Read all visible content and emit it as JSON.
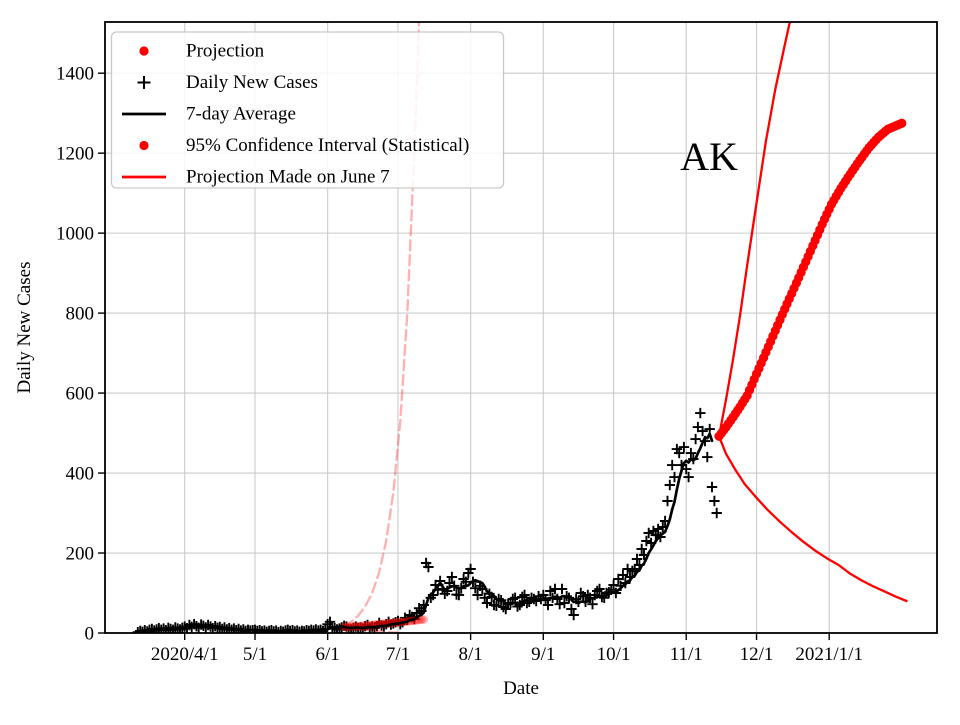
{
  "chart_data": {
    "type": "line+scatter",
    "title": "",
    "xlabel": "Date",
    "ylabel": "Daily New Cases",
    "annotation": {
      "text": "AK",
      "date": "2020-11-11",
      "value": 1190
    },
    "grid": true,
    "colors": {
      "red": "#ff0000",
      "black": "#000000",
      "pink": "rgba(255,0,0,0.30)",
      "grid": "#cbcbcb"
    },
    "x_axis": {
      "lim": [
        "2020-02-27",
        "2021-02-16"
      ],
      "ticks": [
        {
          "date": "2020-04-01",
          "label": "2020/4/1"
        },
        {
          "date": "2020-05-01",
          "label": "5/1"
        },
        {
          "date": "2020-06-01",
          "label": "6/1"
        },
        {
          "date": "2020-07-01",
          "label": "7/1"
        },
        {
          "date": "2020-08-01",
          "label": "8/1"
        },
        {
          "date": "2020-09-01",
          "label": "9/1"
        },
        {
          "date": "2020-10-01",
          "label": "10/1"
        },
        {
          "date": "2020-11-01",
          "label": "11/1"
        },
        {
          "date": "2020-12-01",
          "label": "12/1"
        },
        {
          "date": "2021-01-01",
          "label": "2021/1/1"
        }
      ]
    },
    "y_axis": {
      "lim": [
        0,
        1528
      ],
      "ticks": [
        0,
        200,
        400,
        600,
        800,
        1000,
        1200,
        1400
      ]
    },
    "legend": {
      "position": "upper left",
      "items": [
        {
          "marker": "dot",
          "color": "#ff0000",
          "label": "Projection"
        },
        {
          "marker": "plus",
          "color": "#000000",
          "label": "Daily New Cases"
        },
        {
          "marker": "line",
          "color": "#000000",
          "label": "7-day Average"
        },
        {
          "marker": "dot",
          "color": "#ff0000",
          "label": "95% Confidence Interval (Statistical)"
        },
        {
          "marker": "line",
          "color": "#ff0000",
          "label": "Projection Made on June 7"
        }
      ]
    },
    "series": {
      "daily_new_cases": {
        "type": "scatter",
        "marker": "plus",
        "color": "#000000",
        "start_date": "2020-03-12",
        "values": [
          2,
          5,
          3,
          7,
          4,
          8,
          10,
          6,
          9,
          12,
          8,
          11,
          7,
          13,
          10,
          8,
          14,
          11,
          9,
          13,
          16,
          12,
          20,
          15,
          22,
          17,
          13,
          21,
          18,
          14,
          20,
          16,
          12,
          17,
          13,
          15,
          10,
          14,
          9,
          12,
          8,
          11,
          7,
          10,
          6,
          9,
          5,
          8,
          6,
          7,
          8,
          5,
          7,
          4,
          6,
          3,
          5,
          7,
          4,
          6,
          2,
          5,
          3,
          6,
          8,
          5,
          7,
          4,
          6,
          3,
          5,
          4,
          7,
          5,
          8,
          6,
          9,
          6,
          8,
          5,
          10,
          22,
          28,
          15,
          12,
          9,
          11,
          14,
          18,
          16,
          10,
          9,
          13,
          16,
          12,
          14,
          11,
          17,
          20,
          13,
          16,
          12,
          17,
          25,
          19,
          16,
          22,
          28,
          21,
          24,
          27,
          30,
          22,
          27,
          38,
          33,
          45,
          40,
          35,
          50,
          62,
          55,
          70,
          175,
          165,
          88,
          95,
          120,
          108,
          130,
          110,
          98,
          105,
          125,
          140,
          118,
          96,
          95,
          112,
          135,
          128,
          150,
          160,
          128,
          112,
          95,
          118,
          110,
          88,
          75,
          98,
          90,
          70,
          68,
          85,
          82,
          65,
          60,
          72,
          75,
          85,
          88,
          66,
          70,
          90,
          95,
          75,
          78,
          88,
          85,
          80,
          92,
          85,
          95,
          82,
          70,
          105,
          88,
          110,
          85,
          72,
          110,
          75,
          92,
          88,
          60,
          45,
          85,
          78,
          100,
          92,
          78,
          95,
          88,
          72,
          95,
          105,
          110,
          90,
          88,
          100,
          102,
          108,
          120,
          100,
          135,
          118,
          145,
          125,
          160,
          140,
          155,
          160,
          185,
          170,
          210,
          195,
          230,
          250,
          225,
          255,
          245,
          260,
          240,
          265,
          280,
          330,
          370,
          420,
          390,
          460,
          450,
          420,
          465,
          410,
          390,
          450,
          435,
          485,
          515,
          550,
          505,
          480,
          440,
          510,
          365,
          330,
          300
        ]
      },
      "seven_day_average": {
        "type": "line",
        "color": "#000000",
        "window": 7,
        "derived_from": "daily_new_cases",
        "trim_end": 2
      },
      "projection": {
        "type": "dotline",
        "color": "#ff0000",
        "points": [
          [
            "2020-11-15",
            492
          ],
          [
            "2020-11-18",
            515
          ],
          [
            "2020-11-21",
            540
          ],
          [
            "2020-11-24",
            566
          ],
          [
            "2020-11-27",
            594
          ],
          [
            "2020-12-01",
            648
          ],
          [
            "2020-12-05",
            702
          ],
          [
            "2020-12-09",
            756
          ],
          [
            "2020-12-13",
            810
          ],
          [
            "2020-12-17",
            862
          ],
          [
            "2020-12-21",
            915
          ],
          [
            "2020-12-25",
            968
          ],
          [
            "2020-12-29",
            1022
          ],
          [
            "2021-01-02",
            1072
          ],
          [
            "2021-01-06",
            1112
          ],
          [
            "2021-01-10",
            1148
          ],
          [
            "2021-01-14",
            1182
          ],
          [
            "2021-01-18",
            1214
          ],
          [
            "2021-01-22",
            1240
          ],
          [
            "2021-01-26",
            1260
          ],
          [
            "2021-02-01",
            1275
          ]
        ]
      },
      "ci_upper": {
        "type": "line",
        "color": "#ff0000",
        "points": [
          [
            "2020-11-15",
            492
          ],
          [
            "2020-11-18",
            585
          ],
          [
            "2020-11-21",
            685
          ],
          [
            "2020-11-24",
            795
          ],
          [
            "2020-11-27",
            920
          ],
          [
            "2020-12-01",
            1075
          ],
          [
            "2020-12-05",
            1230
          ],
          [
            "2020-12-09",
            1360
          ],
          [
            "2020-12-13",
            1470
          ],
          [
            "2020-12-17",
            1575
          ]
        ]
      },
      "ci_lower": {
        "type": "line",
        "color": "#ff0000",
        "points": [
          [
            "2020-11-15",
            492
          ],
          [
            "2020-11-18",
            448
          ],
          [
            "2020-11-22",
            408
          ],
          [
            "2020-11-26",
            372
          ],
          [
            "2020-12-01",
            338
          ],
          [
            "2020-12-06",
            306
          ],
          [
            "2020-12-11",
            278
          ],
          [
            "2020-12-16",
            252
          ],
          [
            "2020-12-21",
            228
          ],
          [
            "2020-12-26",
            206
          ],
          [
            "2020-12-31",
            187
          ],
          [
            "2021-01-05",
            170
          ],
          [
            "2021-01-10",
            148
          ],
          [
            "2021-01-15",
            131
          ],
          [
            "2021-01-20",
            116
          ],
          [
            "2021-01-25",
            103
          ],
          [
            "2021-01-29",
            92
          ],
          [
            "2021-02-03",
            80
          ]
        ]
      },
      "june7_ci_upper": {
        "type": "dashed",
        "color": "rgba(255,0,0,0.30)",
        "points": [
          [
            "2020-06-08",
            18
          ],
          [
            "2020-06-11",
            28
          ],
          [
            "2020-06-14",
            43
          ],
          [
            "2020-06-17",
            66
          ],
          [
            "2020-06-20",
            100
          ],
          [
            "2020-06-23",
            152
          ],
          [
            "2020-06-26",
            230
          ],
          [
            "2020-06-29",
            350
          ],
          [
            "2020-07-02",
            530
          ],
          [
            "2020-07-05",
            800
          ],
          [
            "2020-07-08",
            1210
          ],
          [
            "2020-07-10",
            1530
          ]
        ]
      },
      "june7_ci_lower": {
        "type": "dashed",
        "color": "rgba(255,0,0,0.30)",
        "points": [
          [
            "2020-06-08",
            12
          ],
          [
            "2020-06-14",
            9
          ],
          [
            "2020-06-20",
            6
          ],
          [
            "2020-06-26",
            3
          ],
          [
            "2020-07-02",
            0
          ],
          [
            "2020-07-08",
            -5
          ],
          [
            "2020-07-12",
            -9
          ]
        ]
      },
      "june7_projection": {
        "type": "dotline",
        "color": "rgba(255,0,0,0.30)",
        "points": [
          [
            "2020-06-08",
            15
          ],
          [
            "2020-06-14",
            17
          ],
          [
            "2020-06-20",
            20
          ],
          [
            "2020-06-26",
            24
          ],
          [
            "2020-07-02",
            27
          ],
          [
            "2020-07-08",
            31
          ],
          [
            "2020-07-12",
            34
          ]
        ]
      }
    }
  }
}
